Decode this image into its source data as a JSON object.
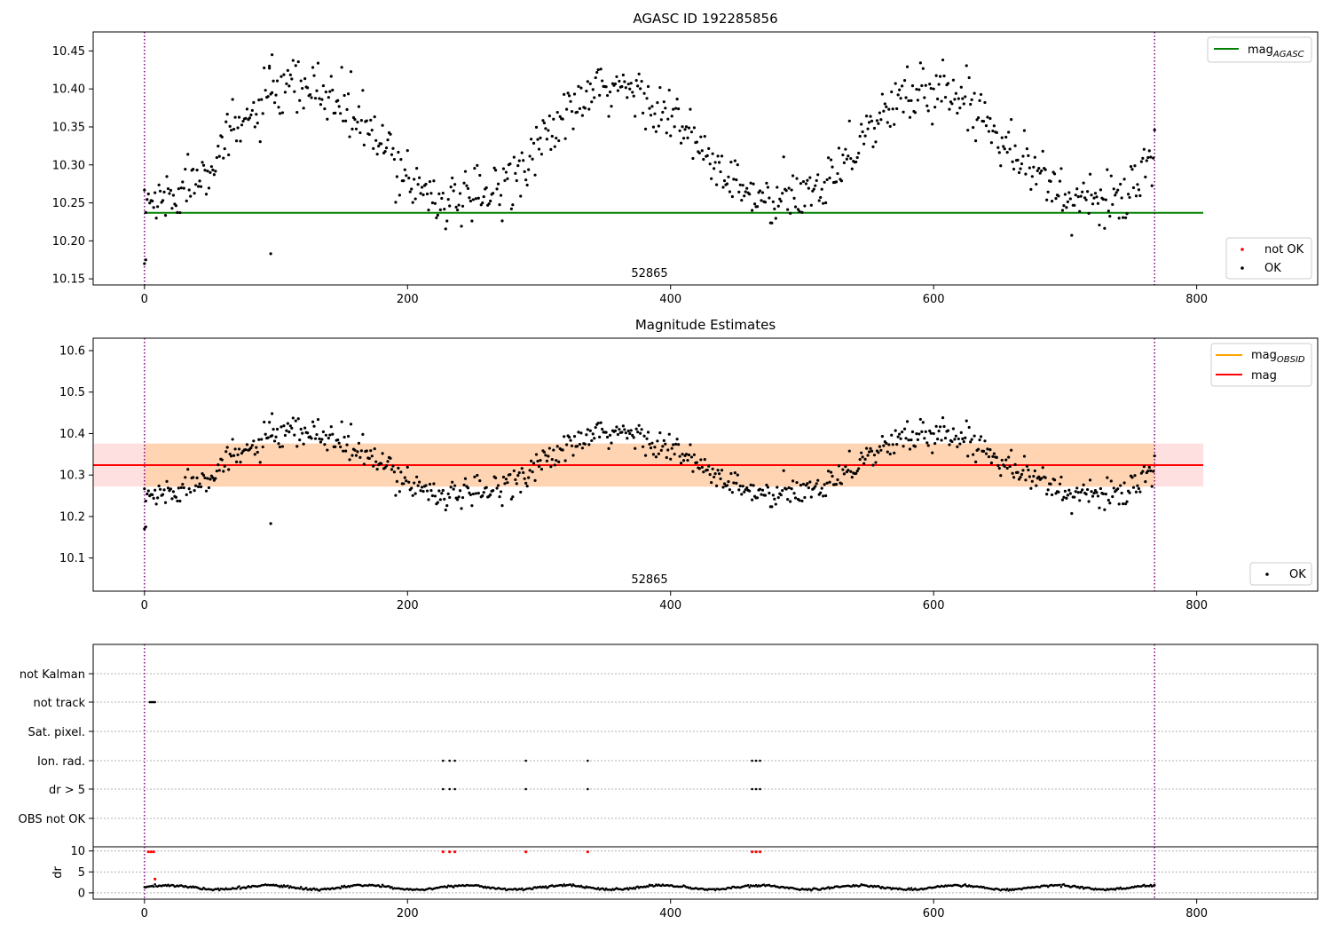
{
  "chart_data": [
    {
      "type": "scatter",
      "title": "AGASC ID 192285856",
      "annotation": "52865",
      "x_ticks": [
        "0",
        "200",
        "400",
        "600",
        "800"
      ],
      "y_ticks": [
        "10.15",
        "10.20",
        "10.25",
        "10.30",
        "10.35",
        "10.40",
        "10.45"
      ],
      "xlim": [
        -39,
        892
      ],
      "ylim": [
        10.142,
        10.475
      ],
      "vlines_x": [
        0,
        768
      ],
      "mag_agasc": {
        "value": 10.237,
        "x_range": [
          0,
          805
        ]
      },
      "legend_upper": [
        {
          "label": "mag",
          "subscript": "AGASC",
          "color": "#008000",
          "marker": "line"
        }
      ],
      "legend_lower": [
        {
          "label": "not OK",
          "color": "#ff0000",
          "marker": "dot"
        },
        {
          "label": "OK",
          "color": "#000000",
          "marker": "dot"
        }
      ],
      "series": [
        {
          "name": "OK",
          "color": "#000000",
          "sine": {
            "x_start": 0,
            "x_end": 768,
            "step": 1,
            "mean": 10.325,
            "amplitude": 0.075,
            "period": 240,
            "phase_x": 60,
            "scatter": 0.02
          }
        }
      ],
      "outliers": [
        {
          "x": 0,
          "y": 10.17
        },
        {
          "x": 1,
          "y": 10.175
        },
        {
          "x": 96,
          "y": 10.183
        },
        {
          "x": 97,
          "y": 10.445
        },
        {
          "x": 95,
          "y": 10.43
        }
      ]
    },
    {
      "type": "scatter",
      "title": "Magnitude Estimates",
      "annotation": "52865",
      "x_ticks": [
        "0",
        "200",
        "400",
        "600",
        "800"
      ],
      "y_ticks": [
        "10.1",
        "10.2",
        "10.3",
        "10.4",
        "10.5",
        "10.6"
      ],
      "xlim": [
        -39,
        892
      ],
      "ylim": [
        10.02,
        10.63
      ],
      "vlines_x": [
        0,
        768
      ],
      "mag": {
        "value": 10.324,
        "band": [
          10.272,
          10.376
        ],
        "x_range": [
          -39,
          805
        ]
      },
      "mag_obsid": {
        "value": 10.324,
        "band": [
          10.272,
          10.376
        ],
        "x_range": [
          0,
          768
        ]
      },
      "legend_upper": [
        {
          "label": "mag",
          "subscript": "OBSID",
          "color": "#ffa500",
          "marker": "line"
        },
        {
          "label": "mag",
          "subscript": "",
          "color": "#ff0000",
          "marker": "line"
        }
      ],
      "legend_lower": [
        {
          "label": "OK",
          "color": "#000000",
          "marker": "dot"
        }
      ],
      "series": [
        {
          "name": "OK",
          "color": "#000000",
          "sine": {
            "x_start": 0,
            "x_end": 768,
            "step": 1,
            "mean": 10.325,
            "amplitude": 0.075,
            "period": 240,
            "phase_x": 60,
            "scatter": 0.02
          }
        }
      ],
      "outliers": [
        {
          "x": 0,
          "y": 10.17
        },
        {
          "x": 1,
          "y": 10.175
        },
        {
          "x": 96,
          "y": 10.183
        },
        {
          "x": 97,
          "y": 10.448
        }
      ]
    },
    {
      "type": "scatter",
      "title": "",
      "x_ticks": [
        "0",
        "200",
        "400",
        "600",
        "800"
      ],
      "xlim": [
        -39,
        892
      ],
      "vlines_x": [
        0,
        768
      ],
      "flag_rows": [
        "not Kalman",
        "not track",
        "Sat. pixel.",
        "Ion. rad.",
        "dr > 5",
        "OBS not OK"
      ],
      "flags": {
        "not track": [
          4,
          5,
          6,
          7,
          8
        ],
        "Ion. rad.": [
          227,
          232,
          236,
          290,
          337,
          462,
          465,
          468
        ],
        "dr > 5": [
          227,
          232,
          236,
          290,
          337,
          462,
          465,
          468
        ]
      },
      "dr_panel": {
        "ylabel": "dr",
        "y_ticks": [
          "0",
          "5",
          "10"
        ],
        "ylim": [
          -1.5,
          11
        ],
        "red_points": [
          {
            "x": 3,
            "y": 9.8
          },
          {
            "x": 5,
            "y": 9.8
          },
          {
            "x": 7,
            "y": 9.8
          },
          {
            "x": 227,
            "y": 9.8
          },
          {
            "x": 232,
            "y": 9.8
          },
          {
            "x": 236,
            "y": 9.8
          },
          {
            "x": 290,
            "y": 9.8
          },
          {
            "x": 337,
            "y": 9.8
          },
          {
            "x": 462,
            "y": 9.8
          },
          {
            "x": 465,
            "y": 9.8
          },
          {
            "x": 468,
            "y": 9.8
          },
          {
            "x": 8,
            "y": 3.3
          }
        ],
        "black_trend": {
          "x_start": 0,
          "x_end": 768,
          "mean": 1.3,
          "amplitude": 0.5,
          "period": 75,
          "scatter": 0.25
        }
      }
    }
  ]
}
